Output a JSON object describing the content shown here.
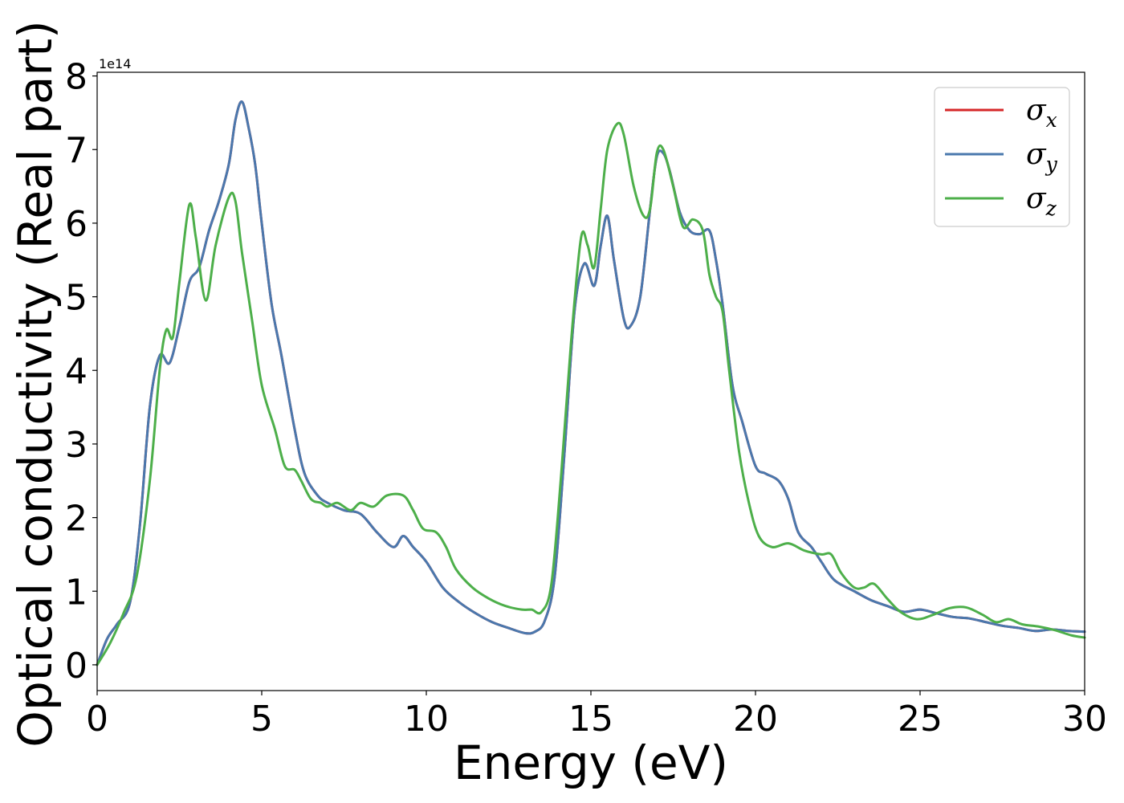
{
  "chart_data": {
    "type": "line",
    "xlabel": "Energy (eV)",
    "ylabel": "Optical conductivity (Real part)",
    "y_offset_label": "1e14",
    "xlim": [
      0,
      30
    ],
    "ylim": [
      -0.35,
      8.05
    ],
    "x_ticks": [
      0,
      5,
      10,
      15,
      20,
      25,
      30
    ],
    "y_ticks": [
      0,
      1,
      2,
      3,
      4,
      5,
      6,
      7,
      8
    ],
    "grid": false,
    "legend_position": "top-right",
    "series": [
      {
        "name": "σx",
        "symbol": "σ",
        "subscript": "x",
        "color": "#d62728",
        "x": [
          0,
          0.3,
          0.6,
          1.0,
          1.3,
          1.6,
          1.9,
          2.2,
          2.5,
          2.8,
          3.1,
          3.4,
          3.7,
          4.0,
          4.2,
          4.4,
          4.6,
          4.8,
          5.0,
          5.3,
          5.6,
          6.0,
          6.3,
          6.7,
          7.0,
          7.5,
          8.0,
          8.5,
          9.0,
          9.3,
          9.6,
          10.0,
          10.5,
          11.0,
          11.5,
          12.0,
          12.5,
          13.0,
          13.3,
          13.6,
          13.9,
          14.2,
          14.5,
          14.8,
          15.1,
          15.3,
          15.5,
          15.7,
          16.0,
          16.2,
          16.5,
          16.8,
          17.0,
          17.2,
          17.4,
          17.7,
          18.0,
          18.3,
          18.6,
          18.8,
          19.0,
          19.3,
          19.6,
          20.0,
          20.3,
          20.7,
          21.0,
          21.3,
          21.7,
          22.0,
          22.4,
          23.0,
          23.5,
          24.0,
          24.5,
          25.0,
          25.5,
          26.0,
          26.5,
          27.0,
          27.5,
          28.0,
          28.5,
          29.0,
          29.5,
          30.0
        ],
        "values": [
          0.0,
          0.35,
          0.55,
          0.85,
          1.9,
          3.5,
          4.2,
          4.1,
          4.6,
          5.2,
          5.4,
          5.9,
          6.3,
          6.8,
          7.4,
          7.65,
          7.3,
          6.8,
          6.0,
          4.9,
          4.2,
          3.2,
          2.6,
          2.3,
          2.2,
          2.1,
          2.05,
          1.8,
          1.6,
          1.75,
          1.6,
          1.4,
          1.05,
          0.85,
          0.7,
          0.58,
          0.5,
          0.43,
          0.45,
          0.6,
          1.2,
          2.9,
          4.8,
          5.45,
          5.15,
          5.7,
          6.1,
          5.5,
          4.7,
          4.6,
          5.0,
          6.2,
          6.9,
          6.95,
          6.7,
          6.15,
          5.9,
          5.85,
          5.9,
          5.5,
          4.9,
          3.8,
          3.3,
          2.7,
          2.6,
          2.5,
          2.25,
          1.8,
          1.6,
          1.4,
          1.15,
          1.0,
          0.88,
          0.8,
          0.72,
          0.75,
          0.7,
          0.65,
          0.63,
          0.58,
          0.53,
          0.5,
          0.46,
          0.48,
          0.46,
          0.45
        ]
      },
      {
        "name": "σy",
        "symbol": "σ",
        "subscript": "y",
        "color": "#4a78ad",
        "x": [
          0,
          0.3,
          0.6,
          1.0,
          1.3,
          1.6,
          1.9,
          2.2,
          2.5,
          2.8,
          3.1,
          3.4,
          3.7,
          4.0,
          4.2,
          4.4,
          4.6,
          4.8,
          5.0,
          5.3,
          5.6,
          6.0,
          6.3,
          6.7,
          7.0,
          7.5,
          8.0,
          8.5,
          9.0,
          9.3,
          9.6,
          10.0,
          10.5,
          11.0,
          11.5,
          12.0,
          12.5,
          13.0,
          13.3,
          13.6,
          13.9,
          14.2,
          14.5,
          14.8,
          15.1,
          15.3,
          15.5,
          15.7,
          16.0,
          16.2,
          16.5,
          16.8,
          17.0,
          17.2,
          17.4,
          17.7,
          18.0,
          18.3,
          18.6,
          18.8,
          19.0,
          19.3,
          19.6,
          20.0,
          20.3,
          20.7,
          21.0,
          21.3,
          21.7,
          22.0,
          22.4,
          23.0,
          23.5,
          24.0,
          24.5,
          25.0,
          25.5,
          26.0,
          26.5,
          27.0,
          27.5,
          28.0,
          28.5,
          29.0,
          29.5,
          30.0
        ],
        "values": [
          0.0,
          0.35,
          0.55,
          0.85,
          1.9,
          3.5,
          4.2,
          4.1,
          4.6,
          5.2,
          5.4,
          5.9,
          6.3,
          6.8,
          7.4,
          7.65,
          7.3,
          6.8,
          6.0,
          4.9,
          4.2,
          3.2,
          2.6,
          2.3,
          2.2,
          2.1,
          2.05,
          1.8,
          1.6,
          1.75,
          1.6,
          1.4,
          1.05,
          0.85,
          0.7,
          0.58,
          0.5,
          0.43,
          0.45,
          0.6,
          1.2,
          2.9,
          4.8,
          5.45,
          5.15,
          5.7,
          6.1,
          5.5,
          4.7,
          4.6,
          5.0,
          6.2,
          6.9,
          6.95,
          6.7,
          6.15,
          5.9,
          5.85,
          5.9,
          5.5,
          4.9,
          3.8,
          3.3,
          2.7,
          2.6,
          2.5,
          2.25,
          1.8,
          1.6,
          1.4,
          1.15,
          1.0,
          0.88,
          0.8,
          0.72,
          0.75,
          0.7,
          0.65,
          0.63,
          0.58,
          0.53,
          0.5,
          0.46,
          0.48,
          0.46,
          0.45
        ]
      },
      {
        "name": "σz",
        "symbol": "σ",
        "subscript": "z",
        "color": "#4daf4a",
        "x": [
          0,
          0.4,
          0.8,
          1.2,
          1.6,
          1.9,
          2.1,
          2.3,
          2.5,
          2.8,
          3.0,
          3.3,
          3.6,
          4.0,
          4.2,
          4.4,
          4.7,
          5.0,
          5.4,
          5.7,
          6.0,
          6.2,
          6.5,
          6.8,
          7.0,
          7.3,
          7.7,
          8.0,
          8.4,
          8.8,
          9.3,
          9.6,
          9.9,
          10.3,
          10.6,
          10.9,
          11.4,
          11.9,
          12.4,
          12.9,
          13.2,
          13.5,
          13.8,
          14.1,
          14.4,
          14.7,
          14.9,
          15.1,
          15.3,
          15.5,
          15.8,
          16.0,
          16.3,
          16.6,
          16.8,
          17.0,
          17.2,
          17.5,
          17.8,
          18.1,
          18.4,
          18.6,
          18.8,
          19.0,
          19.2,
          19.5,
          19.8,
          20.1,
          20.5,
          21.0,
          21.5,
          22.0,
          22.3,
          22.6,
          23.0,
          23.3,
          23.6,
          24.0,
          24.4,
          24.9,
          25.4,
          25.9,
          26.4,
          26.9,
          27.3,
          27.7,
          28.1,
          28.6,
          29.1,
          29.6,
          30.0
        ],
        "values": [
          0.0,
          0.3,
          0.7,
          1.2,
          2.5,
          4.0,
          4.55,
          4.45,
          5.2,
          6.25,
          5.8,
          4.95,
          5.7,
          6.35,
          6.3,
          5.6,
          4.7,
          3.8,
          3.2,
          2.7,
          2.65,
          2.5,
          2.25,
          2.2,
          2.15,
          2.2,
          2.1,
          2.2,
          2.15,
          2.3,
          2.3,
          2.1,
          1.85,
          1.8,
          1.6,
          1.3,
          1.05,
          0.9,
          0.8,
          0.75,
          0.75,
          0.72,
          1.1,
          2.6,
          4.4,
          5.8,
          5.7,
          5.4,
          6.2,
          7.0,
          7.35,
          7.2,
          6.5,
          6.1,
          6.2,
          6.95,
          7.0,
          6.5,
          5.95,
          6.05,
          5.9,
          5.3,
          5.0,
          4.8,
          4.0,
          2.9,
          2.2,
          1.75,
          1.6,
          1.65,
          1.55,
          1.5,
          1.5,
          1.25,
          1.05,
          1.05,
          1.1,
          0.9,
          0.72,
          0.62,
          0.68,
          0.77,
          0.78,
          0.68,
          0.58,
          0.62,
          0.55,
          0.52,
          0.47,
          0.4,
          0.37
        ]
      }
    ]
  }
}
